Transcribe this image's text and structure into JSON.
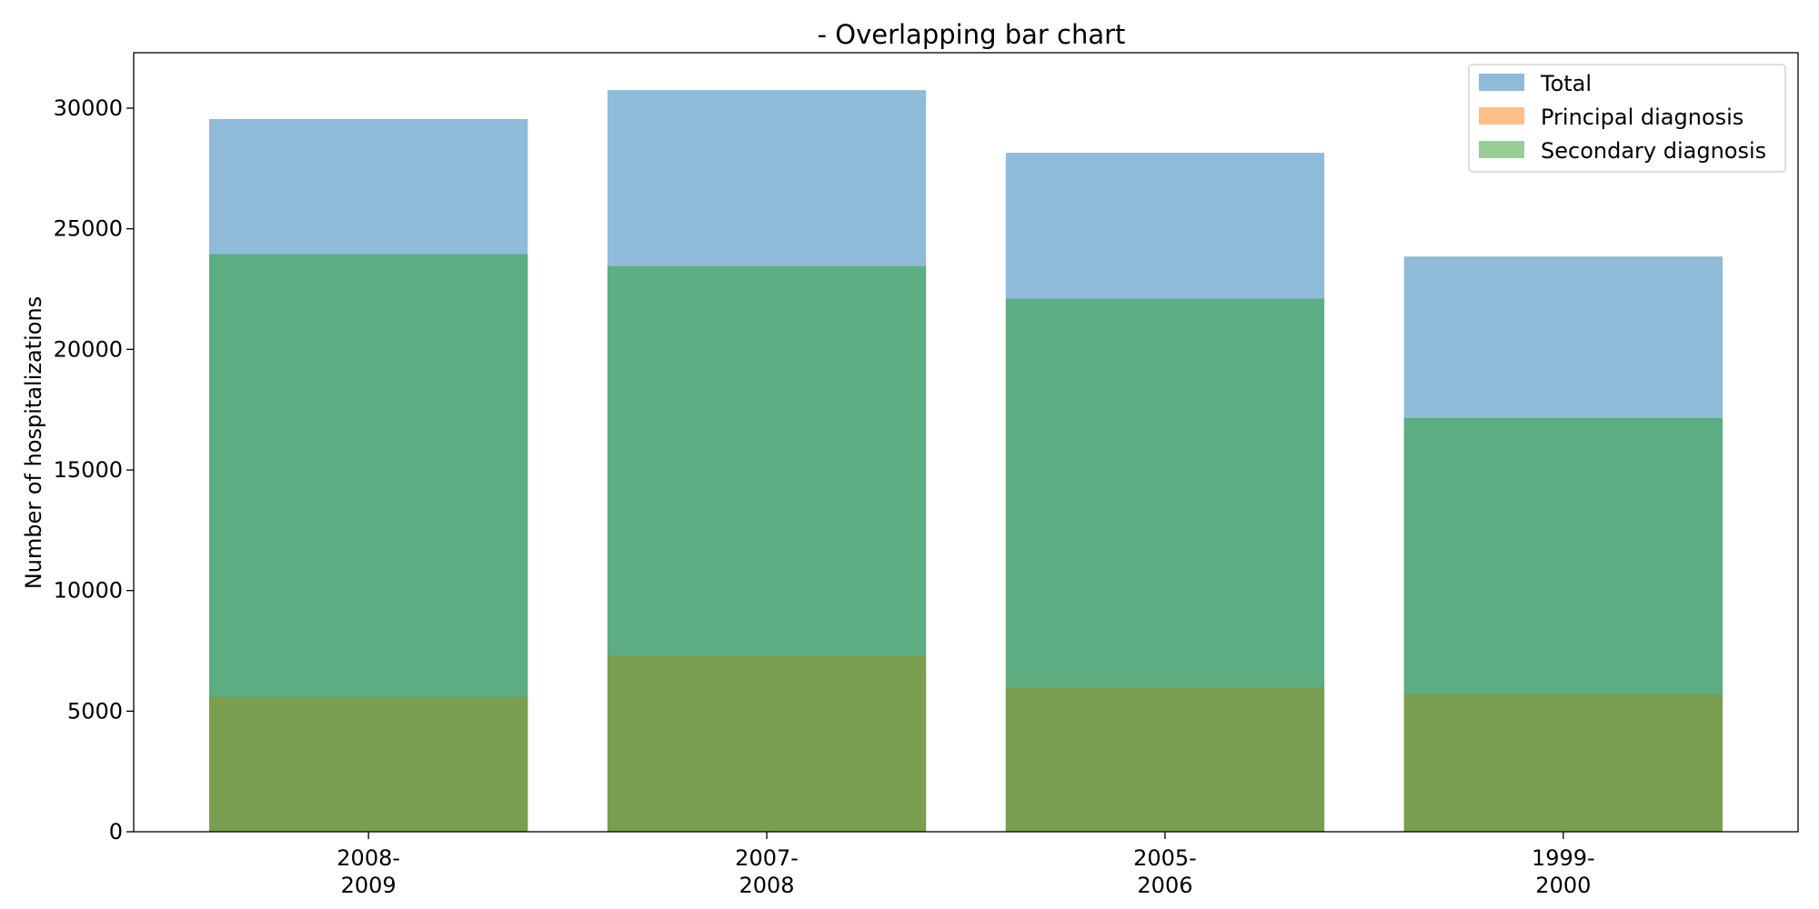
{
  "chart_data": {
    "type": "bar",
    "title": "- Overlapping bar chart",
    "xlabel": "",
    "ylabel": "Number of hospitalizations",
    "categories": [
      [
        "2008-",
        "2009"
      ],
      [
        "2007-",
        "2008"
      ],
      [
        "2005-",
        "2006"
      ],
      [
        "1999-",
        "2000"
      ]
    ],
    "series": [
      {
        "name": "Total",
        "values": [
          29550,
          30750,
          28150,
          23850
        ],
        "color": "#1f77b4",
        "alpha": 0.5
      },
      {
        "name": "Principal diagnosis",
        "values": [
          5600,
          7300,
          6000,
          5700
        ],
        "color": "#ff7f0e",
        "alpha": 0.5
      },
      {
        "name": "Secondary diagnosis",
        "values": [
          23950,
          23450,
          22100,
          17150
        ],
        "color": "#2ca02c",
        "alpha": 0.5
      }
    ],
    "ylim": [
      0,
      32300
    ],
    "yticks": [
      0,
      5000,
      10000,
      15000,
      20000,
      25000,
      30000
    ],
    "grid": false,
    "legend_position": "top-right",
    "overlap": true
  }
}
